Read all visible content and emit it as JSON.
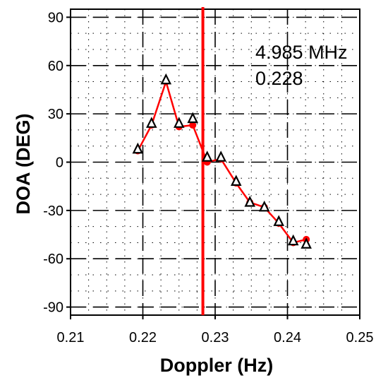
{
  "chart_data": {
    "type": "line",
    "xlabel": "Doppler (Hz)",
    "ylabel": "DOA (DEG)",
    "xlim": [
      0.21,
      0.25
    ],
    "ylim": [
      -95,
      95
    ],
    "x_ticks": [
      0.21,
      0.22,
      0.23,
      0.24,
      0.25
    ],
    "x_tick_labels": [
      "0.21",
      "0.22",
      "0.23",
      "0.24",
      "0.25"
    ],
    "y_ticks": [
      90,
      60,
      30,
      0,
      -30,
      -60,
      -90
    ],
    "y_tick_labels": [
      "90",
      "60",
      "30",
      "0",
      "-30",
      "-60",
      "-90"
    ],
    "grid": true,
    "vline": {
      "x": 0.2283,
      "color": "#ff0000"
    },
    "annotations": [
      "4.985 MHz",
      "0.228"
    ],
    "series": [
      {
        "marker": "circle",
        "color": "#ff0000",
        "x": [
          0.2193,
          0.2212,
          0.2232,
          0.225,
          0.2269,
          0.2289,
          0.2308,
          0.2329,
          0.2348,
          0.2368,
          0.2388,
          0.2408,
          0.2426
        ],
        "y": [
          7,
          23,
          50,
          22,
          23,
          0,
          2,
          -13,
          -25,
          -28,
          -38,
          -50,
          -48
        ]
      },
      {
        "marker": "triangle",
        "color": "#000000",
        "x": [
          0.2193,
          0.2212,
          0.2232,
          0.225,
          0.2269,
          0.2289,
          0.2308,
          0.2329,
          0.2348,
          0.2368,
          0.2388,
          0.2408,
          0.2426
        ],
        "y": [
          8,
          24,
          51,
          24,
          27,
          3,
          3,
          -12,
          -25,
          -28,
          -37,
          -49,
          -51
        ]
      }
    ]
  }
}
